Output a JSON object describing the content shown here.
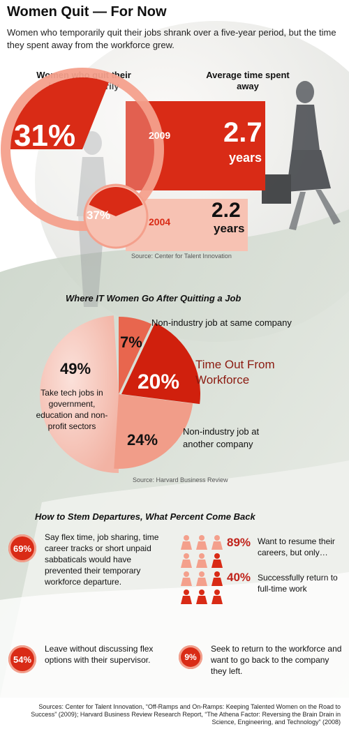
{
  "header": {
    "title": "Women Quit — For Now",
    "subtitle": "Women who temporarily quit their jobs shrank over a five-year period, but the time they spent away from the workforce grew."
  },
  "section1": {
    "left_header": "Women who quit their jobs temporarily",
    "right_header": "Average time spent away",
    "rows": [
      {
        "pct": "31%",
        "year": "2009",
        "time": "2.7",
        "unit": "years"
      },
      {
        "pct": "37%",
        "year": "2004",
        "time": "2.2",
        "unit": "years"
      }
    ],
    "source": "Source: Center for Talent Innovation"
  },
  "section2": {
    "title": "Where IT Women Go After Quitting a Job",
    "labels": {
      "same_company": "Non-industry job at same company",
      "time_out": "Time Out From Workforce",
      "another_company": "Non-industry job at another company",
      "tech_jobs": "Take tech jobs in government, education and non-profit sectors"
    },
    "pcts": {
      "same_company": "7%",
      "time_out": "20%",
      "another_company": "24%",
      "tech_jobs": "49%"
    },
    "source": "Source: Harvard Business Review"
  },
  "section3": {
    "title": "How to Stem Departures, What Percent Come Back",
    "items": [
      {
        "pct": "69%",
        "text": "Say flex time, job sharing, time career tracks or short unpaid sabbaticals would have prevented their temporary workforce departure."
      },
      {
        "pct": "54%",
        "text": "Leave without discussing flex options with their supervisor."
      },
      {
        "pct": "9%",
        "text": "Seek to return to the workforce and want to go back to the company they left."
      }
    ],
    "resume_pct": "89%",
    "resume_text": "Want to resume their careers, but only…",
    "return_pct": "40%",
    "return_text": "Successfully return to full-time work"
  },
  "footer": {
    "sources": "Sources: Center for Talent Innovation, “Off-Ramps and On-Ramps: Keeping Talented Women on the Road to Success” (2009); Harvard Business Review Research Report, “The Athena Factor: Reversing the Brain Drain in Science, Engineering, and Technology” (2008)"
  },
  "colors": {
    "red": "#d92b16",
    "salmon": "#f4a08c",
    "pale": "#f7c9bd",
    "dark_red": "#8b1a10"
  },
  "chart_data": [
    {
      "type": "bar",
      "title": "",
      "categories": [
        "2009",
        "2004"
      ],
      "series": [
        {
          "name": "Women who quit their jobs temporarily",
          "values": [
            31,
            37
          ],
          "unit": "%"
        },
        {
          "name": "Average time spent away",
          "values": [
            2.7,
            2.2
          ],
          "unit": "years"
        }
      ]
    },
    {
      "type": "pie",
      "title": "Where IT Women Go After Quitting a Job",
      "labels": [
        "Take tech jobs in government, education and non-profit sectors",
        "Non-industry job at same company",
        "Time Out From Workforce",
        "Non-industry job at another company"
      ],
      "values": [
        49,
        7,
        20,
        24
      ]
    }
  ]
}
